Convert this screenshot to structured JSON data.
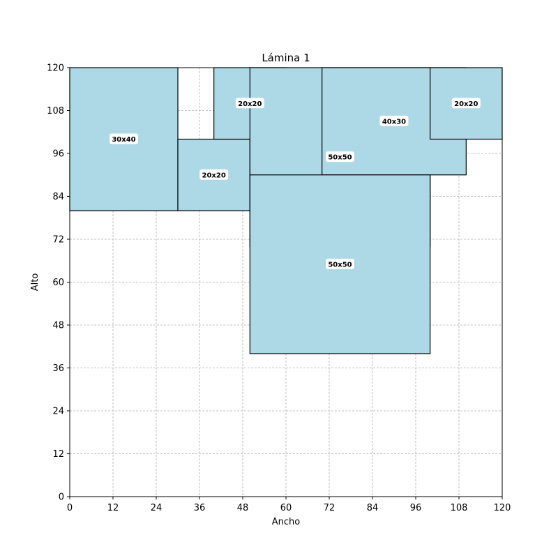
{
  "chart_data": {
    "type": "rect-layout",
    "title": "Lámina 1",
    "xlabel": "Ancho",
    "ylabel": "Alto",
    "xlim": [
      0,
      120
    ],
    "ylim": [
      0,
      120
    ],
    "xticks": [
      0,
      12,
      24,
      36,
      48,
      60,
      72,
      84,
      96,
      108,
      120
    ],
    "yticks": [
      0,
      12,
      24,
      36,
      48,
      60,
      72,
      84,
      96,
      108,
      120
    ],
    "grid": true,
    "fill_color": "#add8e6",
    "edge_color": "#000000",
    "pieces": [
      {
        "label": "30x40",
        "x": 0,
        "y": 80,
        "w": 30,
        "h": 40
      },
      {
        "label": "20x20",
        "x": 30,
        "y": 80,
        "w": 20,
        "h": 20
      },
      {
        "label": "20x20",
        "x": 40,
        "y": 100,
        "w": 20,
        "h": 20
      },
      {
        "label": "50x50",
        "x": 50,
        "y": 70,
        "w": 50,
        "h": 50
      },
      {
        "label": "40x30",
        "x": 70,
        "y": 90,
        "w": 40,
        "h": 30
      },
      {
        "label": "20x20",
        "x": 100,
        "y": 100,
        "w": 20,
        "h": 20
      },
      {
        "label": "50x50",
        "x": 50,
        "y": 40,
        "w": 50,
        "h": 50
      }
    ]
  }
}
